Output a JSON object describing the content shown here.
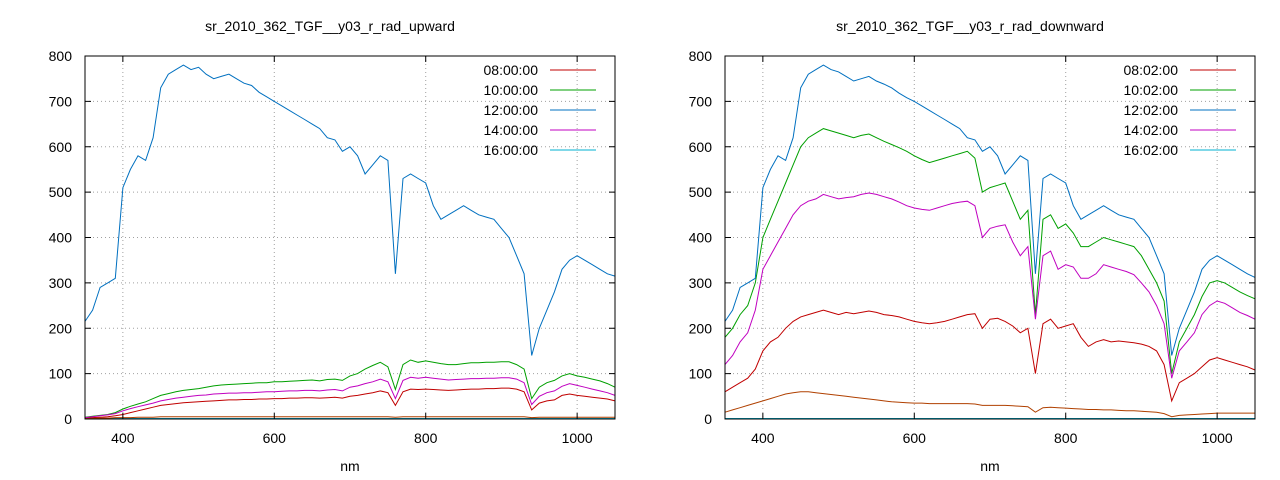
{
  "chart_data": [
    {
      "type": "line",
      "title": "sr_2010_362_TGF__y03_r_rad_upward",
      "xlabel": "nm",
      "ylabel": "",
      "xlim": [
        350,
        1050
      ],
      "ylim": [
        0,
        800
      ],
      "xticks": [
        400,
        600,
        800,
        1000
      ],
      "yticks": [
        0,
        100,
        200,
        300,
        400,
        500,
        600,
        700,
        800
      ],
      "grid": true,
      "legend_position": "top-right",
      "x": [
        350,
        360,
        370,
        380,
        390,
        400,
        410,
        420,
        430,
        440,
        450,
        460,
        470,
        480,
        490,
        500,
        510,
        520,
        530,
        540,
        550,
        560,
        570,
        580,
        590,
        600,
        610,
        620,
        630,
        640,
        650,
        660,
        670,
        680,
        690,
        700,
        710,
        720,
        730,
        740,
        750,
        760,
        770,
        780,
        790,
        800,
        810,
        820,
        830,
        840,
        850,
        860,
        870,
        880,
        890,
        900,
        910,
        920,
        930,
        940,
        950,
        960,
        970,
        980,
        990,
        1000,
        1010,
        1020,
        1030,
        1040,
        1050
      ],
      "series": [
        {
          "name": "08:00:00",
          "color": "#c00000",
          "values": [
            2,
            3,
            4,
            5,
            7,
            10,
            14,
            18,
            22,
            26,
            30,
            32,
            34,
            36,
            37,
            38,
            39,
            40,
            41,
            42,
            42,
            43,
            43,
            44,
            44,
            45,
            45,
            46,
            46,
            47,
            47,
            46,
            47,
            48,
            46,
            50,
            52,
            55,
            58,
            62,
            58,
            30,
            60,
            66,
            65,
            66,
            65,
            64,
            63,
            64,
            65,
            66,
            66,
            67,
            67,
            68,
            68,
            66,
            60,
            20,
            35,
            40,
            42,
            52,
            55,
            52,
            50,
            48,
            46,
            44,
            40
          ]
        },
        {
          "name": "10:00:00",
          "color": "#00a000",
          "values": [
            4,
            6,
            8,
            10,
            14,
            22,
            28,
            33,
            38,
            45,
            52,
            56,
            60,
            63,
            65,
            67,
            70,
            73,
            75,
            76,
            77,
            78,
            79,
            80,
            80,
            82,
            82,
            83,
            84,
            85,
            86,
            84,
            87,
            88,
            85,
            95,
            100,
            110,
            118,
            125,
            115,
            65,
            120,
            130,
            125,
            128,
            125,
            122,
            120,
            120,
            122,
            124,
            124,
            125,
            125,
            126,
            126,
            120,
            110,
            45,
            70,
            80,
            85,
            95,
            100,
            95,
            92,
            88,
            84,
            78,
            70
          ]
        },
        {
          "name": "12:00:00",
          "color": "#0070c0",
          "values": [
            215,
            240,
            290,
            300,
            310,
            510,
            550,
            580,
            570,
            620,
            730,
            760,
            770,
            780,
            770,
            775,
            760,
            750,
            755,
            760,
            750,
            740,
            735,
            720,
            710,
            700,
            690,
            680,
            670,
            660,
            650,
            640,
            620,
            615,
            590,
            600,
            580,
            540,
            560,
            580,
            570,
            320,
            530,
            540,
            530,
            520,
            470,
            440,
            450,
            460,
            470,
            460,
            450,
            445,
            440,
            420,
            400,
            360,
            320,
            140,
            200,
            240,
            280,
            330,
            350,
            360,
            350,
            340,
            330,
            320,
            315
          ]
        },
        {
          "name": "14:00:00",
          "color": "#c000c0",
          "values": [
            3,
            5,
            7,
            9,
            12,
            18,
            23,
            27,
            31,
            35,
            40,
            43,
            46,
            48,
            50,
            52,
            53,
            55,
            56,
            57,
            57,
            58,
            58,
            59,
            60,
            60,
            61,
            62,
            62,
            63,
            63,
            62,
            64,
            65,
            62,
            70,
            73,
            78,
            82,
            88,
            82,
            45,
            85,
            92,
            90,
            92,
            90,
            88,
            86,
            87,
            88,
            89,
            89,
            90,
            90,
            91,
            91,
            88,
            80,
            32,
            50,
            58,
            62,
            72,
            78,
            74,
            70,
            66,
            62,
            58,
            52
          ]
        },
        {
          "name": "16:00:00",
          "color": "#00b0d0",
          "values": [
            1,
            1,
            1,
            1,
            1,
            1,
            1,
            1,
            1,
            1,
            1,
            1,
            1,
            1,
            1,
            1,
            1,
            1,
            1,
            1,
            1,
            1,
            1,
            1,
            1,
            1,
            1,
            1,
            1,
            1,
            1,
            1,
            1,
            1,
            1,
            1,
            1,
            1,
            1,
            1,
            1,
            1,
            1,
            1,
            1,
            1,
            1,
            1,
            1,
            1,
            1,
            1,
            1,
            1,
            1,
            1,
            1,
            1,
            1,
            1,
            1,
            1,
            1,
            1,
            1,
            1,
            1,
            1,
            1,
            1,
            1
          ]
        },
        {
          "name": "",
          "color": "#b04000",
          "values": [
            1,
            1,
            2,
            2,
            3,
            3,
            3,
            4,
            4,
            4,
            5,
            5,
            5,
            5,
            5,
            5,
            5,
            5,
            5,
            5,
            5,
            5,
            5,
            5,
            5,
            5,
            5,
            5,
            5,
            5,
            5,
            5,
            5,
            5,
            5,
            5,
            5,
            5,
            5,
            5,
            5,
            4,
            5,
            5,
            5,
            5,
            5,
            5,
            5,
            5,
            5,
            5,
            5,
            5,
            5,
            5,
            5,
            5,
            5,
            3,
            4,
            4,
            4,
            4,
            4,
            4,
            4,
            4,
            4,
            4,
            4
          ]
        }
      ]
    },
    {
      "type": "line",
      "title": "sr_2010_362_TGF__y03_r_rad_downward",
      "xlabel": "nm",
      "ylabel": "",
      "xlim": [
        350,
        1050
      ],
      "ylim": [
        0,
        800
      ],
      "xticks": [
        400,
        600,
        800,
        1000
      ],
      "yticks": [
        0,
        100,
        200,
        300,
        400,
        500,
        600,
        700,
        800
      ],
      "grid": true,
      "legend_position": "top-right",
      "x": [
        350,
        360,
        370,
        380,
        390,
        400,
        410,
        420,
        430,
        440,
        450,
        460,
        470,
        480,
        490,
        500,
        510,
        520,
        530,
        540,
        550,
        560,
        570,
        580,
        590,
        600,
        610,
        620,
        630,
        640,
        650,
        660,
        670,
        680,
        690,
        700,
        710,
        720,
        730,
        740,
        750,
        760,
        770,
        780,
        790,
        800,
        810,
        820,
        830,
        840,
        850,
        860,
        870,
        880,
        890,
        900,
        910,
        920,
        930,
        940,
        950,
        960,
        970,
        980,
        990,
        1000,
        1010,
        1020,
        1030,
        1040,
        1050
      ],
      "series": [
        {
          "name": "08:02:00",
          "color": "#c00000",
          "values": [
            60,
            70,
            80,
            90,
            110,
            150,
            170,
            180,
            200,
            215,
            225,
            230,
            235,
            240,
            235,
            230,
            235,
            232,
            235,
            238,
            235,
            230,
            228,
            225,
            220,
            215,
            212,
            210,
            212,
            215,
            220,
            225,
            230,
            232,
            200,
            220,
            222,
            215,
            205,
            190,
            200,
            100,
            210,
            220,
            200,
            205,
            210,
            180,
            160,
            170,
            175,
            170,
            172,
            170,
            168,
            165,
            160,
            150,
            120,
            40,
            80,
            90,
            100,
            115,
            130,
            135,
            130,
            125,
            120,
            115,
            108
          ]
        },
        {
          "name": "10:02:00",
          "color": "#00a000",
          "values": [
            180,
            200,
            230,
            250,
            300,
            400,
            440,
            480,
            520,
            560,
            600,
            620,
            630,
            640,
            635,
            630,
            625,
            620,
            625,
            628,
            620,
            612,
            605,
            598,
            590,
            580,
            572,
            565,
            570,
            575,
            580,
            585,
            590,
            575,
            500,
            510,
            515,
            520,
            480,
            440,
            460,
            230,
            440,
            450,
            420,
            430,
            410,
            380,
            380,
            390,
            400,
            395,
            390,
            385,
            380,
            360,
            330,
            300,
            260,
            100,
            170,
            200,
            230,
            270,
            300,
            305,
            300,
            290,
            280,
            272,
            265
          ]
        },
        {
          "name": "12:02:00",
          "color": "#0070c0",
          "values": [
            215,
            240,
            290,
            300,
            310,
            510,
            550,
            580,
            570,
            620,
            730,
            760,
            770,
            780,
            770,
            765,
            755,
            745,
            750,
            755,
            745,
            738,
            730,
            718,
            708,
            700,
            690,
            680,
            670,
            660,
            650,
            640,
            620,
            615,
            590,
            600,
            580,
            540,
            560,
            580,
            570,
            320,
            530,
            540,
            530,
            520,
            470,
            440,
            450,
            460,
            470,
            460,
            450,
            445,
            440,
            420,
            400,
            360,
            320,
            140,
            200,
            240,
            280,
            330,
            350,
            360,
            350,
            340,
            330,
            320,
            312
          ]
        },
        {
          "name": "14:02:00",
          "color": "#c000c0",
          "values": [
            120,
            140,
            170,
            190,
            240,
            330,
            360,
            390,
            420,
            450,
            470,
            480,
            485,
            495,
            490,
            485,
            488,
            490,
            495,
            498,
            495,
            490,
            485,
            478,
            470,
            465,
            462,
            460,
            465,
            470,
            475,
            478,
            480,
            470,
            400,
            420,
            425,
            428,
            390,
            360,
            380,
            220,
            360,
            370,
            330,
            340,
            335,
            310,
            310,
            320,
            340,
            335,
            330,
            325,
            318,
            300,
            280,
            250,
            210,
            90,
            150,
            170,
            190,
            230,
            250,
            260,
            255,
            245,
            235,
            228,
            220
          ]
        },
        {
          "name": "16:02:00",
          "color": "#00b0d0",
          "values": [
            1,
            1,
            1,
            1,
            1,
            1,
            1,
            1,
            1,
            1,
            1,
            1,
            1,
            1,
            1,
            1,
            1,
            1,
            1,
            1,
            1,
            1,
            1,
            1,
            1,
            1,
            1,
            1,
            1,
            1,
            1,
            1,
            1,
            1,
            1,
            1,
            1,
            1,
            1,
            1,
            1,
            1,
            1,
            1,
            1,
            1,
            1,
            1,
            1,
            1,
            1,
            1,
            1,
            1,
            1,
            1,
            1,
            1,
            1,
            1,
            1,
            1,
            1,
            1,
            1,
            1,
            1,
            1,
            1,
            1,
            1
          ]
        },
        {
          "name": "",
          "color": "#b04000",
          "values": [
            15,
            20,
            25,
            30,
            35,
            40,
            45,
            50,
            55,
            58,
            60,
            60,
            58,
            56,
            54,
            52,
            50,
            48,
            46,
            44,
            42,
            40,
            38,
            37,
            36,
            35,
            35,
            34,
            34,
            34,
            34,
            34,
            34,
            33,
            30,
            30,
            30,
            30,
            29,
            28,
            27,
            15,
            25,
            26,
            25,
            24,
            23,
            22,
            21,
            21,
            20,
            20,
            19,
            18,
            18,
            17,
            16,
            15,
            12,
            5,
            8,
            9,
            10,
            11,
            12,
            13,
            13,
            13,
            13,
            13,
            13
          ]
        }
      ]
    }
  ]
}
